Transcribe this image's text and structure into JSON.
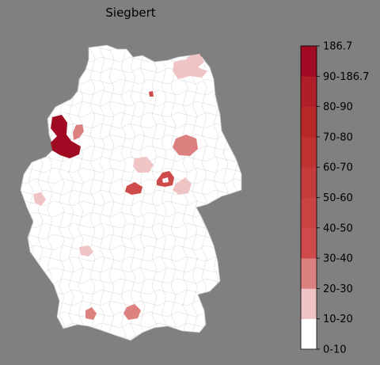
{
  "title": "Siegbert",
  "legend": {
    "max_label": "186.7",
    "bins": [
      {
        "label": "0-10",
        "color": "#ffffff"
      },
      {
        "label": "10-20",
        "color": "#f0c4c4"
      },
      {
        "label": "20-30",
        "color": "#dc8080"
      },
      {
        "label": "30-40",
        "color": "#cf4a4a"
      },
      {
        "label": "40-50",
        "color": "#ca4343"
      },
      {
        "label": "50-60",
        "color": "#c43b3b"
      },
      {
        "label": "60-70",
        "color": "#be3232"
      },
      {
        "label": "70-80",
        "color": "#b82828"
      },
      {
        "label": "80-90",
        "color": "#b01e2a"
      },
      {
        "label": "90-186.7",
        "color": "#a00a22"
      }
    ]
  },
  "colors": {
    "background": "#808080",
    "land": "#ffffff",
    "border": "#c8c8c8"
  },
  "map": {
    "regions": "germany-districts",
    "highlighted": [
      {
        "name": "district-nw-large",
        "bin": "90-186.7"
      },
      {
        "name": "district-nw-small",
        "bin": "20-30"
      },
      {
        "name": "district-north-coast",
        "bin": "10-20"
      },
      {
        "name": "district-north-dot",
        "bin": "30-40"
      },
      {
        "name": "district-east-center",
        "bin": "20-30"
      },
      {
        "name": "district-center-west",
        "bin": "10-20"
      },
      {
        "name": "district-center",
        "bin": "30-40"
      },
      {
        "name": "district-center-ring",
        "bin": "30-40"
      },
      {
        "name": "district-center-east",
        "bin": "10-20"
      },
      {
        "name": "district-west",
        "bin": "10-20"
      },
      {
        "name": "district-southwest",
        "bin": "10-20"
      },
      {
        "name": "district-south-a",
        "bin": "20-30"
      },
      {
        "name": "district-south-b",
        "bin": "20-30"
      }
    ]
  }
}
